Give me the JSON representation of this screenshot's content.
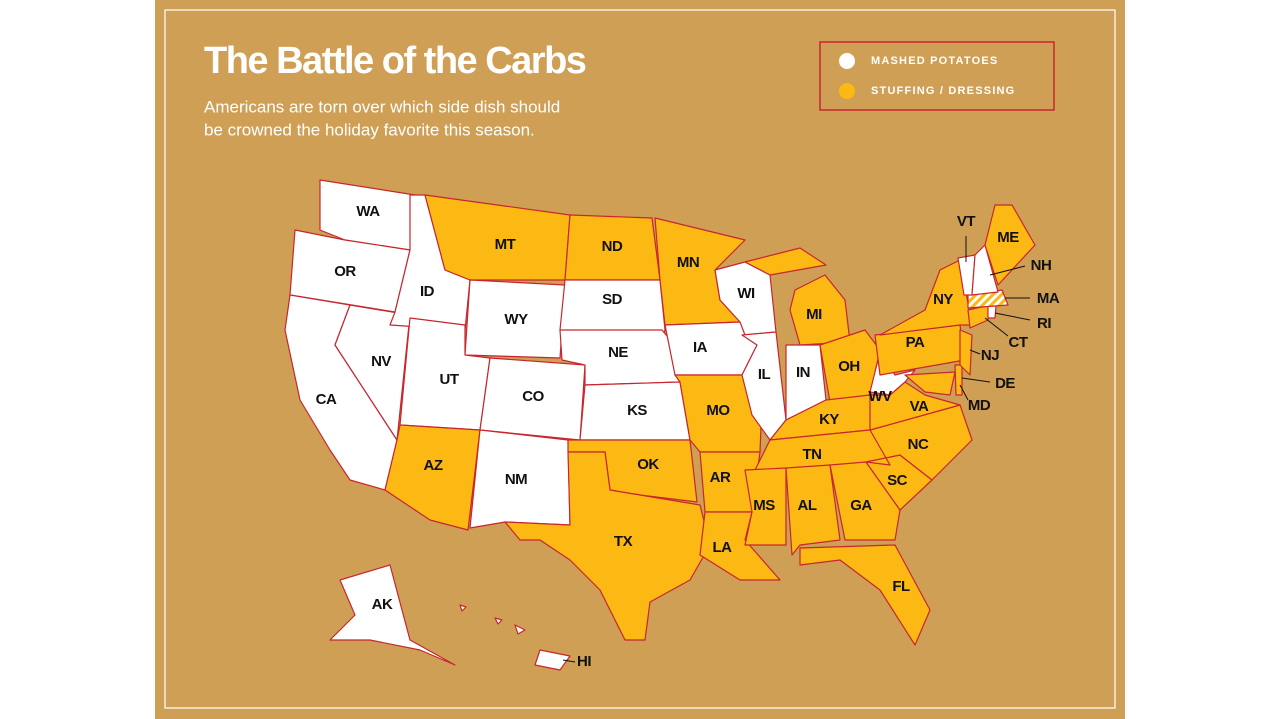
{
  "title": "The Battle of the Carbs",
  "subtitle": [
    "Americans are torn over which side dish should",
    "be crowned the holiday favorite this season."
  ],
  "legend": [
    {
      "label": "MASHED POTATOES",
      "color": "#ffffff"
    },
    {
      "label": "STUFFING / DRESSING",
      "color": "#fdb913"
    }
  ],
  "states": [
    {
      "label": "WA",
      "choice": [
        0
      ]
    },
    {
      "label": "OR",
      "choice": [
        0
      ]
    },
    {
      "label": "CA",
      "choice": [
        0
      ]
    },
    {
      "label": "NV",
      "choice": [
        0
      ]
    },
    {
      "label": "ID",
      "choice": [
        0
      ]
    },
    {
      "label": "MT",
      "choice": [
        1
      ]
    },
    {
      "label": "WY",
      "choice": [
        0
      ]
    },
    {
      "label": "UT",
      "choice": [
        0
      ]
    },
    {
      "label": "CO",
      "choice": [
        0
      ]
    },
    {
      "label": "AZ",
      "choice": [
        1
      ]
    },
    {
      "label": "NM",
      "choice": [
        0
      ]
    },
    {
      "label": "ND",
      "choice": [
        1
      ]
    },
    {
      "label": "SD",
      "choice": [
        0
      ]
    },
    {
      "label": "NE",
      "choice": [
        0
      ]
    },
    {
      "label": "KS",
      "choice": [
        0
      ]
    },
    {
      "label": "OK",
      "choice": [
        1
      ]
    },
    {
      "label": "TX",
      "choice": [
        1
      ]
    },
    {
      "label": "MN",
      "choice": [
        1
      ]
    },
    {
      "label": "IA",
      "choice": [
        0
      ]
    },
    {
      "label": "MO",
      "choice": [
        1
      ]
    },
    {
      "label": "AR",
      "choice": [
        1
      ]
    },
    {
      "label": "LA",
      "choice": [
        1
      ]
    },
    {
      "label": "WI",
      "choice": [
        0
      ]
    },
    {
      "label": "IL",
      "choice": [
        0
      ]
    },
    {
      "label": "MI",
      "choice": [
        1
      ]
    },
    {
      "label": "IN",
      "choice": [
        0
      ]
    },
    {
      "label": "OH",
      "choice": [
        1
      ]
    },
    {
      "label": "KY",
      "choice": [
        1
      ]
    },
    {
      "label": "TN",
      "choice": [
        1
      ]
    },
    {
      "label": "MS",
      "choice": [
        1
      ]
    },
    {
      "label": "AL",
      "choice": [
        1
      ]
    },
    {
      "label": "GA",
      "choice": [
        1
      ]
    },
    {
      "label": "FL",
      "choice": [
        1
      ]
    },
    {
      "label": "SC",
      "choice": [
        1
      ]
    },
    {
      "label": "NC",
      "choice": [
        1
      ]
    },
    {
      "label": "VA",
      "choice": [
        1
      ]
    },
    {
      "label": "WV",
      "choice": [
        0
      ]
    },
    {
      "label": "MD",
      "choice": [
        1
      ]
    },
    {
      "label": "DE",
      "choice": [
        1
      ]
    },
    {
      "label": "PA",
      "choice": [
        1
      ]
    },
    {
      "label": "NJ",
      "choice": [
        1
      ]
    },
    {
      "label": "NY",
      "choice": [
        1
      ]
    },
    {
      "label": "CT",
      "choice": [
        1
      ]
    },
    {
      "label": "RI",
      "choice": [
        0
      ]
    },
    {
      "label": "MA",
      "choice": [
        0,
        1
      ]
    },
    {
      "label": "VT",
      "choice": [
        0
      ]
    },
    {
      "label": "NH",
      "choice": [
        0
      ]
    },
    {
      "label": "ME",
      "choice": [
        1
      ]
    },
    {
      "label": "AK",
      "choice": [
        0
      ]
    },
    {
      "label": "HI",
      "choice": [
        0
      ]
    }
  ]
}
